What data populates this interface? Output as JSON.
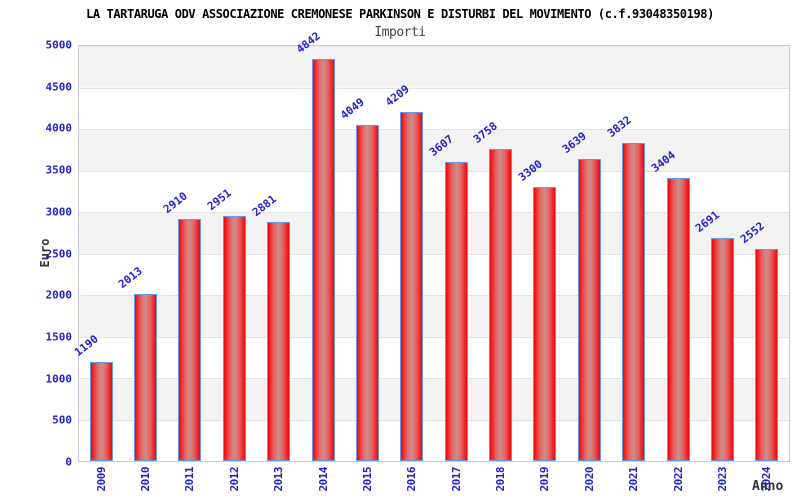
{
  "title": "LA TARTARUGA ODV ASSOCIAZIONE CREMONESE PARKINSON E DISTURBI DEL MOVIMENTO (c.f.93048350198)",
  "subtitle": "Importi",
  "colors": {
    "label_blue": "#2222cc",
    "bar_edge": "#ee0707",
    "bar_mid": "#c98f8f",
    "bar_border": "#6699ee",
    "band_gray": "#f3f3f3",
    "grid": "#e2e2e2",
    "axis_border": "#c9c9da",
    "title_color": "#000000",
    "subtitle_color": "#444444",
    "axis_title_color": "#333333"
  },
  "chart_data": {
    "type": "bar",
    "title": "LA TARTARUGA ODV ASSOCIAZIONE CREMONESE PARKINSON E DISTURBI DEL MOVIMENTO (c.f.93048350198)",
    "subtitle": "Importi",
    "xlabel": "Anno",
    "ylabel": "Euro",
    "categories": [
      "2009",
      "2010",
      "2011",
      "2012",
      "2013",
      "2014",
      "2015",
      "2016",
      "2017",
      "2018",
      "2019",
      "2020",
      "2021",
      "2022",
      "2023",
      "2024"
    ],
    "values": [
      1190,
      2013,
      2910,
      2951,
      2881,
      4842,
      4049,
      4209,
      3607,
      3758,
      3300,
      3639,
      3832,
      3404,
      2691,
      2552
    ],
    "ylim": [
      0,
      5000
    ],
    "ytick_step": 500,
    "yticks": [
      0,
      500,
      1000,
      1500,
      2000,
      2500,
      3000,
      3500,
      4000,
      4500,
      5000
    ],
    "grid": "horizontal-bands",
    "legend": "none",
    "bar_label_rotation_deg": -38,
    "xtick_rotation_deg": -90
  }
}
